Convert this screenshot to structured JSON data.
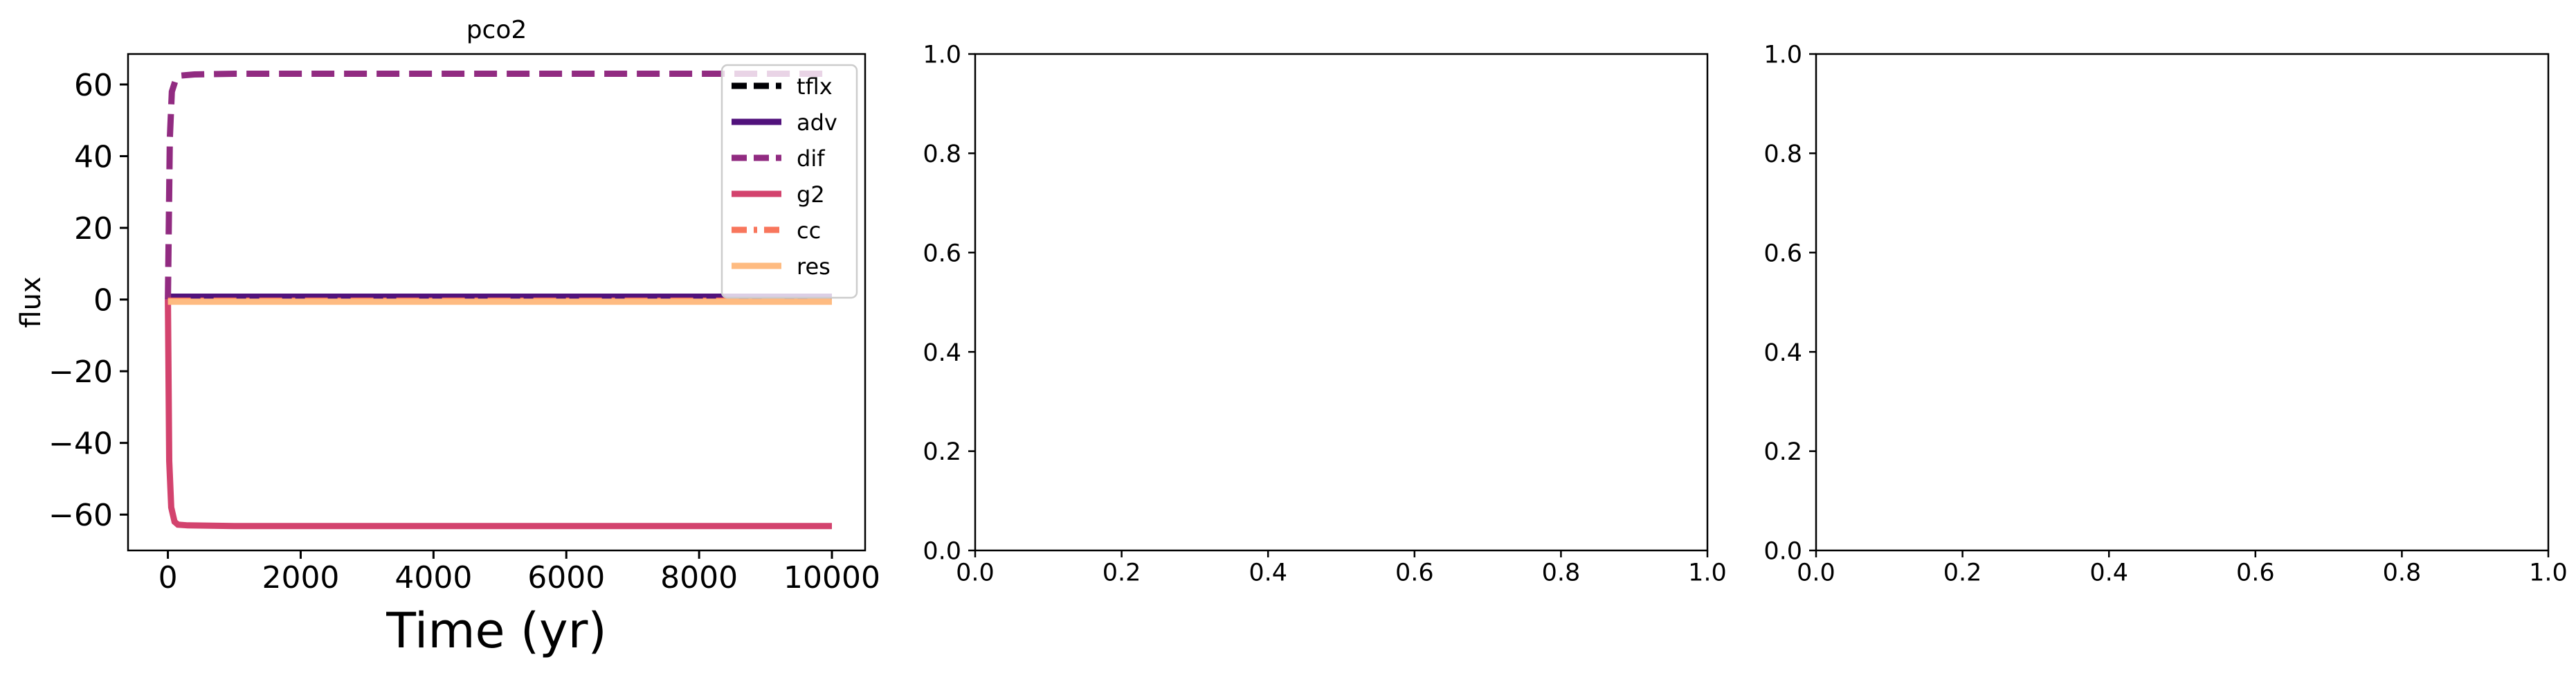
{
  "chart_data": [
    {
      "type": "line",
      "title": "pco2",
      "xlabel": "Time (yr)",
      "ylabel": "flux",
      "xlim": [
        -600,
        10500
      ],
      "ylim": [
        -70,
        68.5
      ],
      "xticks": [
        0,
        2000,
        4000,
        6000,
        8000,
        10000
      ],
      "xtick_labels": [
        "0",
        "2000",
        "4000",
        "6000",
        "8000",
        "10000"
      ],
      "yticks": [
        -60,
        -40,
        -20,
        0,
        20,
        40,
        60
      ],
      "ytick_labels": [
        "−60",
        "−40",
        "−20",
        "0",
        "20",
        "40",
        "60"
      ],
      "grid": false,
      "legend_position": "top-right",
      "series": [
        {
          "name": "tflx",
          "color": "#000004",
          "dash": "dashed",
          "x": [
            0,
            10000
          ],
          "y": [
            0,
            0
          ]
        },
        {
          "name": "adv",
          "color": "#51127c",
          "dash": "solid",
          "x": [
            0,
            10000
          ],
          "y": [
            0.8,
            0.8
          ]
        },
        {
          "name": "dif",
          "color": "#912b81",
          "dash": "dashed",
          "x": [
            0,
            30,
            60,
            120,
            200,
            400,
            1000,
            5000,
            10000
          ],
          "y": [
            0,
            45,
            58,
            61.5,
            62.5,
            62.8,
            63,
            63,
            63
          ]
        },
        {
          "name": "g2",
          "color": "#d3436e",
          "dash": "solid",
          "x": [
            0,
            20,
            50,
            100,
            150,
            300,
            1000,
            5000,
            10000
          ],
          "y": [
            0,
            -45,
            -58,
            -62,
            -62.8,
            -63,
            -63.2,
            -63.2,
            -63.2
          ]
        },
        {
          "name": "cc",
          "color": "#f8765c",
          "dash": "dashdot",
          "x": [
            0,
            10000
          ],
          "y": [
            -0.3,
            -0.3
          ]
        },
        {
          "name": "res",
          "color": "#febb81",
          "dash": "solid",
          "x": [
            0,
            10000
          ],
          "y": [
            -0.6,
            -0.6
          ]
        }
      ]
    },
    {
      "type": "line",
      "title": "",
      "xlim": [
        0,
        1
      ],
      "ylim": [
        0,
        1
      ],
      "xticks": [
        0,
        0.2,
        0.4,
        0.6,
        0.8,
        1.0
      ],
      "xtick_labels": [
        "0.0",
        "0.2",
        "0.4",
        "0.6",
        "0.8",
        "1.0"
      ],
      "yticks": [
        0,
        0.2,
        0.4,
        0.6,
        0.8,
        1.0
      ],
      "ytick_labels": [
        "0.0",
        "0.2",
        "0.4",
        "0.6",
        "0.8",
        "1.0"
      ],
      "series": []
    },
    {
      "type": "line",
      "title": "",
      "xlim": [
        0,
        1
      ],
      "ylim": [
        0,
        1
      ],
      "xticks": [
        0,
        0.2,
        0.4,
        0.6,
        0.8,
        1.0
      ],
      "xtick_labels": [
        "0.0",
        "0.2",
        "0.4",
        "0.6",
        "0.8",
        "1.0"
      ],
      "yticks": [
        0,
        0.2,
        0.4,
        0.6,
        0.8,
        1.0
      ],
      "ytick_labels": [
        "0.0",
        "0.2",
        "0.4",
        "0.6",
        "0.8",
        "1.0"
      ],
      "series": []
    }
  ]
}
